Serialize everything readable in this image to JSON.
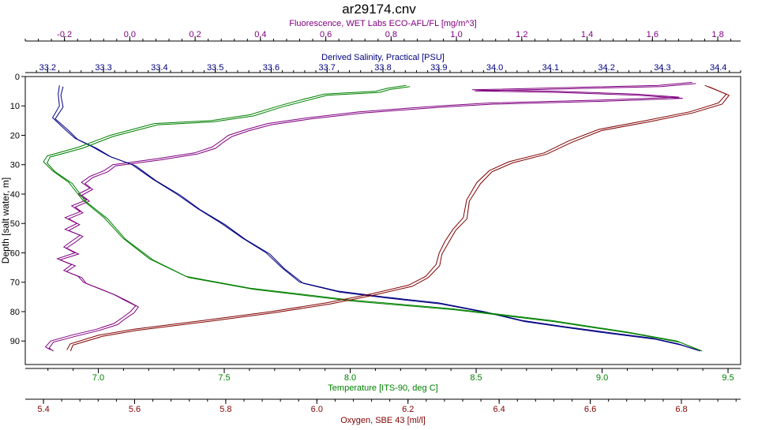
{
  "chart_data": {
    "type": "line",
    "title": "ar29174.cnv",
    "y_axis": {
      "label": "Depth [salt water, m]",
      "range": [
        0,
        98
      ],
      "ticks": [
        0,
        10,
        20,
        30,
        40,
        50,
        60,
        70,
        80,
        90
      ],
      "inverted": true
    },
    "x_axes": [
      {
        "id": "fluorescence",
        "label": "Fluorescence, WET Labs ECO-AFL/FL [mg/m^3]",
        "position": "top-outer",
        "color": "#800080",
        "range": [
          -0.32,
          1.87
        ],
        "ticks": [
          -0.2,
          0.0,
          0.2,
          0.4,
          0.6,
          0.8,
          1.0,
          1.2,
          1.4,
          1.6,
          1.8
        ],
        "tick_labels": [
          "-0.2",
          "0.0",
          "0.2",
          "0.4",
          "0.6",
          "0.8",
          "1.0",
          "1.2",
          "1.4",
          "1.6",
          "1.8"
        ]
      },
      {
        "id": "salinity",
        "label": "Derived Salinity, Practical [PSU]",
        "position": "top-inner",
        "color": "#000080",
        "range": [
          33.16,
          34.44
        ],
        "ticks": [
          33.2,
          33.3,
          33.4,
          33.5,
          33.6,
          33.7,
          33.8,
          33.9,
          34.0,
          34.1,
          34.2,
          34.3,
          34.4
        ],
        "tick_labels": [
          "33.2",
          "33.3",
          "33.4",
          "33.5",
          "33.6",
          "33.7",
          "33.8",
          "33.9",
          "34.0",
          "34.1",
          "34.2",
          "34.3",
          "34.4"
        ]
      },
      {
        "id": "temperature",
        "label": "Temperature [ITS-90, deg C]",
        "position": "bottom-inner",
        "color": "#008000",
        "range": [
          6.71,
          9.55
        ],
        "ticks": [
          7.0,
          7.5,
          8.0,
          8.5,
          9.0,
          9.5
        ],
        "tick_labels": [
          "7.0",
          "7.5",
          "8.0",
          "8.5",
          "9.0",
          "9.5"
        ]
      },
      {
        "id": "oxygen",
        "label": "Oxygen, SBE 43 [ml/l]",
        "position": "bottom-outer",
        "color": "#800000",
        "range": [
          5.36,
          6.93
        ],
        "ticks": [
          5.4,
          5.6,
          5.8,
          6.0,
          6.2,
          6.4,
          6.6,
          6.8
        ],
        "tick_labels": [
          "5.4",
          "5.6",
          "5.8",
          "6.0",
          "6.2",
          "6.4",
          "6.6",
          "6.8"
        ]
      }
    ],
    "grid": false,
    "series": [
      {
        "axis": "fluorescence",
        "color": "#800080",
        "points": [
          [
            1.72,
            2
          ],
          [
            1.62,
            3
          ],
          [
            1.25,
            4
          ],
          [
            1.05,
            4.5
          ],
          [
            1.3,
            5
          ],
          [
            1.55,
            6
          ],
          [
            1.68,
            7
          ],
          [
            1.45,
            8
          ],
          [
            1.1,
            9
          ],
          [
            0.95,
            10
          ],
          [
            0.7,
            12
          ],
          [
            0.55,
            14
          ],
          [
            0.42,
            16
          ],
          [
            0.36,
            18
          ],
          [
            0.3,
            20
          ],
          [
            0.28,
            22
          ],
          [
            0.25,
            24
          ],
          [
            0.2,
            26
          ],
          [
            0.08,
            28
          ],
          [
            -0.05,
            30
          ],
          [
            -0.08,
            32
          ],
          [
            -0.12,
            34
          ],
          [
            -0.15,
            36
          ],
          [
            -0.12,
            38
          ],
          [
            -0.16,
            40
          ],
          [
            -0.13,
            42
          ],
          [
            -0.18,
            44
          ],
          [
            -0.15,
            46
          ],
          [
            -0.2,
            48
          ],
          [
            -0.16,
            50
          ],
          [
            -0.2,
            52
          ],
          [
            -0.15,
            54
          ],
          [
            -0.18,
            56
          ],
          [
            -0.2,
            58
          ],
          [
            -0.17,
            60
          ],
          [
            -0.22,
            62
          ],
          [
            -0.18,
            64
          ],
          [
            -0.2,
            66
          ],
          [
            -0.16,
            68
          ],
          [
            -0.14,
            70
          ],
          [
            -0.1,
            72
          ],
          [
            -0.05,
            74
          ],
          [
            -0.02,
            76
          ],
          [
            0.02,
            78
          ],
          [
            0.0,
            80
          ],
          [
            -0.02,
            82
          ],
          [
            -0.05,
            84
          ],
          [
            -0.1,
            86
          ],
          [
            -0.18,
            88
          ],
          [
            -0.24,
            90
          ],
          [
            -0.26,
            92
          ],
          [
            -0.24,
            93
          ]
        ]
      },
      {
        "axis": "salinity",
        "color": "#000080",
        "points": [
          [
            33.22,
            3
          ],
          [
            33.22,
            6
          ],
          [
            33.22,
            10
          ],
          [
            33.21,
            14
          ],
          [
            33.23,
            18
          ],
          [
            33.25,
            21
          ],
          [
            33.28,
            24
          ],
          [
            33.31,
            27
          ],
          [
            33.35,
            30
          ],
          [
            33.39,
            35
          ],
          [
            33.43,
            40
          ],
          [
            33.47,
            45
          ],
          [
            33.51,
            50
          ],
          [
            33.55,
            55
          ],
          [
            33.59,
            60
          ],
          [
            33.62,
            65
          ],
          [
            33.65,
            70
          ],
          [
            33.72,
            73
          ],
          [
            33.8,
            75
          ],
          [
            33.9,
            77
          ],
          [
            33.98,
            80
          ],
          [
            34.05,
            83
          ],
          [
            34.12,
            85
          ],
          [
            34.2,
            87
          ],
          [
            34.28,
            89
          ],
          [
            34.33,
            91
          ],
          [
            34.36,
            93
          ]
        ]
      },
      {
        "axis": "temperature",
        "color": "#008000",
        "points": [
          [
            8.22,
            3
          ],
          [
            8.15,
            4
          ],
          [
            8.1,
            5
          ],
          [
            7.9,
            6
          ],
          [
            7.8,
            8
          ],
          [
            7.72,
            10
          ],
          [
            7.6,
            13
          ],
          [
            7.45,
            15
          ],
          [
            7.22,
            16
          ],
          [
            7.05,
            20
          ],
          [
            6.92,
            24
          ],
          [
            6.8,
            27
          ],
          [
            6.78,
            29
          ],
          [
            6.82,
            32
          ],
          [
            6.88,
            36
          ],
          [
            6.94,
            42
          ],
          [
            7.02,
            48
          ],
          [
            7.1,
            55
          ],
          [
            7.2,
            62
          ],
          [
            7.35,
            68
          ],
          [
            7.6,
            72
          ],
          [
            8.0,
            76
          ],
          [
            8.4,
            79
          ],
          [
            8.8,
            83
          ],
          [
            9.1,
            87
          ],
          [
            9.3,
            90
          ],
          [
            9.38,
            93
          ]
        ]
      },
      {
        "axis": "oxygen",
        "color": "#800000",
        "points": [
          [
            6.85,
            3
          ],
          [
            6.9,
            6
          ],
          [
            6.88,
            9
          ],
          [
            6.82,
            12
          ],
          [
            6.72,
            15
          ],
          [
            6.62,
            18
          ],
          [
            6.55,
            22
          ],
          [
            6.5,
            26
          ],
          [
            6.42,
            29
          ],
          [
            6.38,
            32
          ],
          [
            6.35,
            36
          ],
          [
            6.33,
            42
          ],
          [
            6.32,
            48
          ],
          [
            6.3,
            52
          ],
          [
            6.28,
            56
          ],
          [
            6.27,
            60
          ],
          [
            6.26,
            64
          ],
          [
            6.24,
            68
          ],
          [
            6.2,
            71
          ],
          [
            6.12,
            74
          ],
          [
            6.02,
            77
          ],
          [
            5.9,
            80
          ],
          [
            5.75,
            83
          ],
          [
            5.6,
            86
          ],
          [
            5.52,
            88
          ],
          [
            5.46,
            91
          ],
          [
            5.45,
            93
          ]
        ]
      }
    ]
  }
}
